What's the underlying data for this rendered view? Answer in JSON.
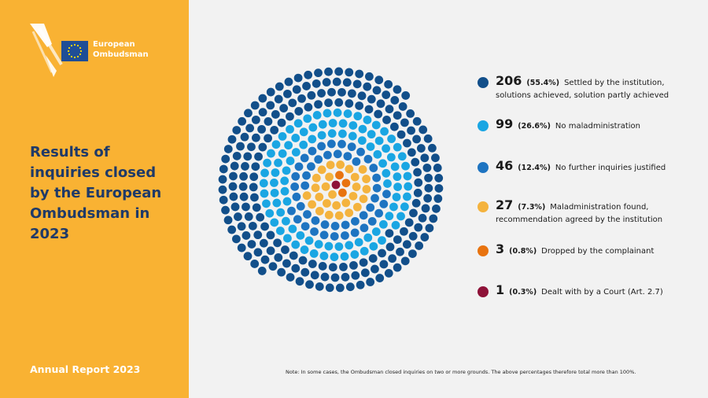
{
  "brand": {
    "name_line1": "European",
    "name_line2": "Ombudsman"
  },
  "title": "Results of inquiries closed by the European Ombudsman in 2023",
  "footer_left": "Annual Report 2023",
  "note": "Note: In some cases, the Ombudsman closed inquiries on two or more grounds. The above percentages therefore total more than 100%.",
  "colors": {
    "panel": "#f9b233",
    "dark_blue": "#124f8a",
    "light_blue": "#1aa6e3",
    "mid_blue": "#1e74c1",
    "yellow": "#f4b33e",
    "orange": "#e8730f",
    "maroon": "#8e1238"
  },
  "chart_data": {
    "type": "dot-matrix",
    "series": [
      {
        "name": "Settled by the institution, solutions achieved, solution partly achieved",
        "value": 206,
        "percent": "55.4%",
        "color": "#124f8a"
      },
      {
        "name": "No maladministration",
        "value": 99,
        "percent": "26.6%",
        "color": "#1aa6e3"
      },
      {
        "name": "No further inquiries justified",
        "value": 46,
        "percent": "12.4%",
        "color": "#1e74c1"
      },
      {
        "name": "Maladministration found, recommendation agreed by the institution",
        "value": 27,
        "percent": "7.3%",
        "color": "#f4b33e"
      },
      {
        "name": "Dropped by the complainant",
        "value": 3,
        "percent": "0.8%",
        "color": "#e8730f"
      },
      {
        "name": "Dealt with by a Court (Art. 2.7)",
        "value": 1,
        "percent": "0.3%",
        "color": "#8e1238"
      }
    ]
  },
  "legend": [
    {
      "count": "206",
      "percent": "(55.4%)",
      "label_line1": "Settled by the institution,",
      "label_line2": "solutions achieved, solution partly achieved"
    },
    {
      "count": "99",
      "percent": "(26.6%)",
      "label_line1": "No maladministration",
      "label_line2": ""
    },
    {
      "count": "46",
      "percent": "(12.4%)",
      "label_line1": "No further inquiries justified",
      "label_line2": ""
    },
    {
      "count": "27",
      "percent": "(7.3%)",
      "label_line1": "Maladministration found,",
      "label_line2": "recommendation agreed by the institution"
    },
    {
      "count": "3",
      "percent": "(0.8%)",
      "label_line1": "Dropped by the complainant",
      "label_line2": ""
    },
    {
      "count": "1",
      "percent": "(0.3%)",
      "label_line1": "Dealt with by a Court (Art. 2.7)",
      "label_line2": ""
    }
  ]
}
